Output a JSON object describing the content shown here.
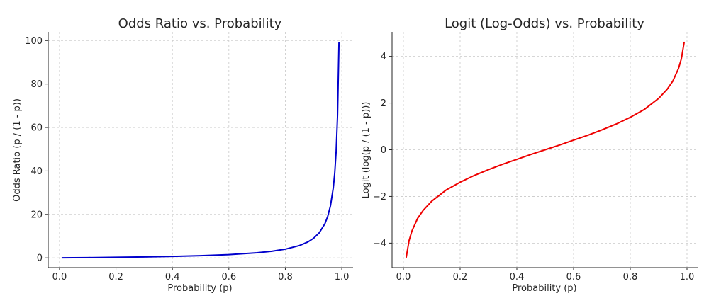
{
  "chart_data": [
    {
      "type": "line",
      "title": "Odds Ratio vs. Probability",
      "xlabel": "Probability (p)",
      "ylabel": "Odds Ratio (p / (1 - p))",
      "xlim": [
        -0.04,
        1.04
      ],
      "ylim": [
        -4.5,
        104
      ],
      "xticks": [
        0.0,
        0.2,
        0.4,
        0.6,
        0.8,
        1.0
      ],
      "xtick_labels": [
        "0.0",
        "0.2",
        "0.4",
        "0.6",
        "0.8",
        "1.0"
      ],
      "yticks": [
        0,
        20,
        40,
        60,
        80,
        100
      ],
      "ytick_labels": [
        "0",
        "20",
        "40",
        "60",
        "80",
        "100"
      ],
      "grid": true,
      "series": [
        {
          "color": "#0000cc",
          "x": [
            0.01,
            0.05,
            0.1,
            0.2,
            0.3,
            0.4,
            0.5,
            0.6,
            0.7,
            0.75,
            0.8,
            0.85,
            0.88,
            0.9,
            0.92,
            0.94,
            0.95,
            0.96,
            0.97,
            0.975,
            0.98,
            0.985,
            0.99
          ],
          "y": [
            0.01,
            0.05,
            0.11,
            0.25,
            0.43,
            0.67,
            1.0,
            1.5,
            2.33,
            3.0,
            4.0,
            5.67,
            7.33,
            9.0,
            11.5,
            15.67,
            19.0,
            24.0,
            32.33,
            39.0,
            49.0,
            65.67,
            99.0
          ]
        }
      ]
    },
    {
      "type": "line",
      "title": "Logit (Log-Odds) vs. Probability",
      "xlabel": "Probability (p)",
      "ylabel": "Logit (log(p / (1 - p)))",
      "xlim": [
        -0.04,
        1.04
      ],
      "ylim": [
        -5.05,
        5.05
      ],
      "xticks": [
        0.0,
        0.2,
        0.4,
        0.6,
        0.8,
        1.0
      ],
      "xtick_labels": [
        "0.0",
        "0.2",
        "0.4",
        "0.6",
        "0.8",
        "1.0"
      ],
      "yticks": [
        -4,
        -2,
        0,
        2,
        4
      ],
      "ytick_labels": [
        "−4",
        "−2",
        "0",
        "2",
        "4"
      ],
      "grid": true,
      "series": [
        {
          "color": "#ee0000",
          "x": [
            0.01,
            0.02,
            0.03,
            0.05,
            0.07,
            0.1,
            0.15,
            0.2,
            0.25,
            0.3,
            0.35,
            0.4,
            0.45,
            0.5,
            0.55,
            0.6,
            0.65,
            0.7,
            0.75,
            0.8,
            0.85,
            0.9,
            0.93,
            0.95,
            0.97,
            0.98,
            0.99
          ],
          "y": [
            -4.6,
            -3.89,
            -3.48,
            -2.94,
            -2.59,
            -2.2,
            -1.73,
            -1.39,
            -1.1,
            -0.85,
            -0.62,
            -0.41,
            -0.2,
            0.0,
            0.2,
            0.41,
            0.62,
            0.85,
            1.1,
            1.39,
            1.73,
            2.2,
            2.59,
            2.94,
            3.48,
            3.89,
            4.6
          ]
        }
      ]
    }
  ]
}
